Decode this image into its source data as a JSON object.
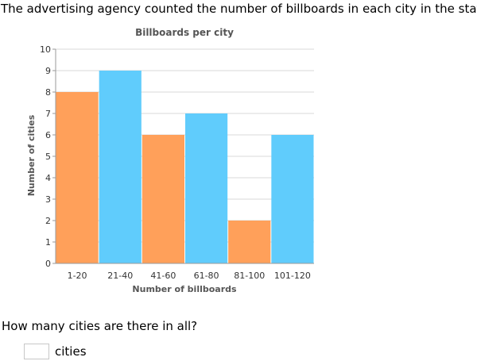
{
  "intro_text": "The advertising agency counted the number of billboards in each city in the state.",
  "question": {
    "prompt": "How many cities are there in all?",
    "answer_value": "",
    "unit_label": "cities"
  },
  "colors": {
    "bar_orange": "#ffa05a",
    "bar_blue": "#60ccfc",
    "grid": "#d8d8d8",
    "axis": "#9a9a9a",
    "title": "#555555",
    "tick_text": "#333333"
  },
  "chart_data": {
    "type": "bar",
    "title": "Billboards per city",
    "xlabel": "Number of billboards",
    "ylabel": "Number of cities",
    "categories": [
      "1-20",
      "21-40",
      "41-60",
      "61-80",
      "81-100",
      "101-120"
    ],
    "values": [
      8,
      9,
      6,
      7,
      2,
      6
    ],
    "bar_colors": [
      "#ffa05a",
      "#60ccfc",
      "#ffa05a",
      "#60ccfc",
      "#ffa05a",
      "#60ccfc"
    ],
    "ylim": [
      0,
      10
    ],
    "yticks": [
      0,
      1,
      2,
      3,
      4,
      5,
      6,
      7,
      8,
      9,
      10
    ],
    "grid": true,
    "legend": "none"
  }
}
